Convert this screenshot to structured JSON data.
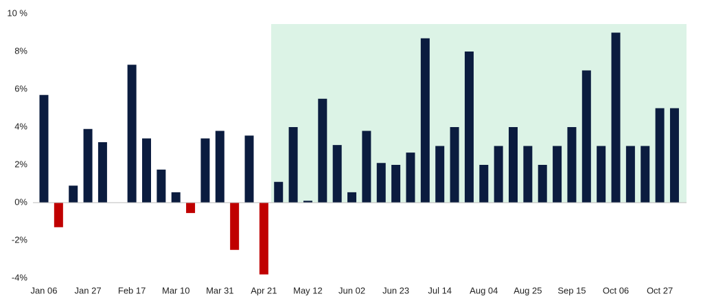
{
  "chart_data": {
    "type": "bar",
    "categories": [
      "Jan 06",
      null,
      null,
      "Jan 27",
      null,
      null,
      "Feb 17",
      null,
      null,
      "Mar 10",
      null,
      null,
      "Mar 31",
      null,
      null,
      "Apr 21",
      null,
      null,
      "May 12",
      null,
      null,
      "Jun 02",
      null,
      null,
      "Jun 23",
      null,
      null,
      "Jul 14",
      null,
      null,
      "Aug 04",
      null,
      null,
      "Aug 25",
      null,
      null,
      "Sep 15",
      null,
      null,
      "Oct 06",
      null,
      null,
      "Oct 27",
      null
    ],
    "values": [
      5.7,
      -1.3,
      0.9,
      3.9,
      3.2,
      0,
      7.3,
      3.4,
      1.75,
      0.55,
      -0.55,
      3.4,
      3.8,
      -2.5,
      3.55,
      -3.8,
      1.1,
      4.0,
      0.1,
      5.5,
      3.05,
      0.55,
      3.8,
      2.1,
      2.0,
      2.65,
      8.7,
      3.0,
      4.0,
      8.0,
      2.0,
      3.0,
      4.0,
      3.0,
      2.0,
      3.0,
      4.0,
      7.0,
      3.0,
      9.0,
      3.0,
      3.0,
      5.0,
      5.0
    ],
    "color": "#0b1c3f",
    "negative_color": "#c00000",
    "ylim": [
      -4,
      10
    ],
    "yticks": [
      {
        "value": -4,
        "label": "-4%"
      },
      {
        "value": -2,
        "label": "-2%"
      },
      {
        "value": 0,
        "label": "0%"
      },
      {
        "value": 2,
        "label": "2%"
      },
      {
        "value": 4,
        "label": "4%"
      },
      {
        "value": 6,
        "label": "6%"
      },
      {
        "value": 8,
        "label": "8%"
      },
      {
        "value": 10,
        "label": "10 %"
      }
    ]
  }
}
